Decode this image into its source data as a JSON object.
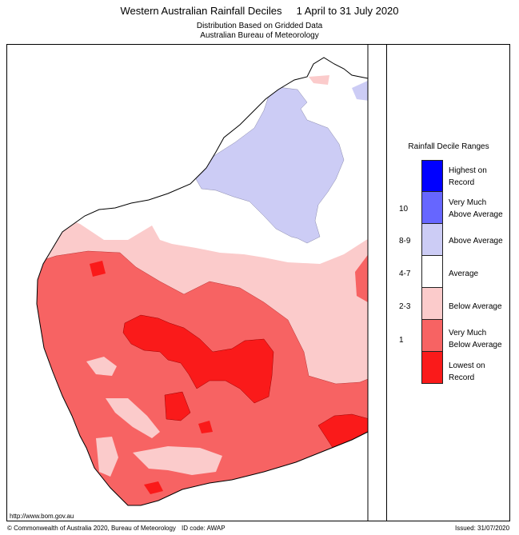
{
  "title": {
    "main": "Western Australian Rainfall Deciles     1 April to 31 July 2020",
    "line2": "Distribution Based on Gridded Data",
    "line3": "Australian Bureau of Meteorology"
  },
  "legend": {
    "title": "Rainfall Decile Ranges",
    "items": [
      {
        "code": "",
        "label1": "Highest on",
        "label2": "Record",
        "color": "#0000ff"
      },
      {
        "code": "10",
        "label1": "Very Much",
        "label2": "Above Average",
        "color": "#6666ff"
      },
      {
        "code": "8-9",
        "label1": "Above Average",
        "label2": "",
        "color": "#ccccf5"
      },
      {
        "code": "4-7",
        "label1": "Average",
        "label2": "",
        "color": "#ffffff"
      },
      {
        "code": "2-3",
        "label1": "Below Average",
        "label2": "",
        "color": "#fbcbcb"
      },
      {
        "code": "1",
        "label1": "Very Much",
        "label2": "Below Average",
        "color": "#f76363"
      },
      {
        "code": "",
        "label1": "Lowest on",
        "label2": "Record",
        "color": "#fa1a1a"
      }
    ]
  },
  "footer": {
    "url": "http://www.bom.gov.au",
    "copyright": "© Commonwealth of Australia 2020, Bureau of Meteorology",
    "id_code": "ID code: AWAP",
    "issued": "Issued: 31/07/2020"
  }
}
